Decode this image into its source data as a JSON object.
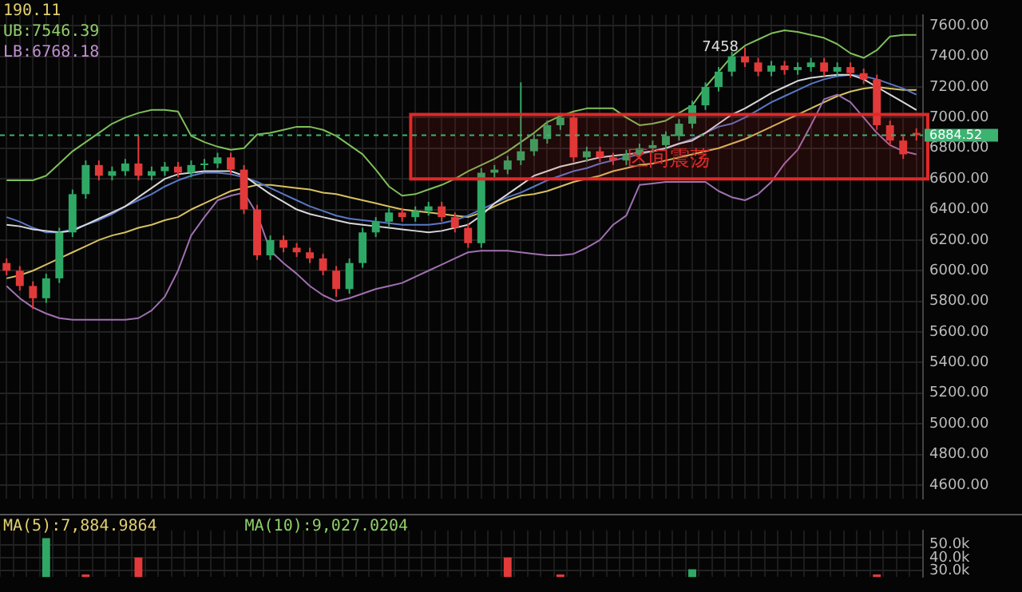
{
  "chart_data": [
    {
      "type": "candlestick",
      "categories": [
        null,
        null,
        null,
        null,
        null,
        null,
        null,
        null,
        null,
        null,
        null,
        null,
        null,
        null,
        null,
        null,
        null,
        null,
        null,
        null,
        null,
        null,
        null,
        null,
        null,
        null,
        null,
        null,
        null,
        null,
        null,
        null,
        null,
        null,
        null,
        null,
        null,
        null,
        null,
        null,
        null,
        null,
        null,
        null,
        null,
        null,
        null,
        null,
        null,
        null,
        null,
        null,
        null,
        null,
        null,
        null,
        null,
        null,
        null,
        null,
        null,
        null,
        null,
        null,
        null,
        null,
        null,
        null,
        null,
        null
      ],
      "ohlc": [
        [
          6050,
          6080,
          5970,
          6000
        ],
        [
          6000,
          6030,
          5870,
          5900
        ],
        [
          5900,
          5930,
          5750,
          5820
        ],
        [
          5820,
          5980,
          5790,
          5950
        ],
        [
          5950,
          6280,
          5920,
          6250
        ],
        [
          6250,
          6530,
          6220,
          6500
        ],
        [
          6500,
          6720,
          6470,
          6690
        ],
        [
          6690,
          6720,
          6590,
          6620
        ],
        [
          6620,
          6680,
          6590,
          6650
        ],
        [
          6650,
          6730,
          6620,
          6700
        ],
        [
          6700,
          6880,
          6590,
          6620
        ],
        [
          6620,
          6680,
          6590,
          6650
        ],
        [
          6650,
          6710,
          6620,
          6680
        ],
        [
          6680,
          6710,
          6610,
          6640
        ],
        [
          6640,
          6720,
          6610,
          6690
        ],
        [
          6690,
          6730,
          6660,
          6700
        ],
        [
          6700,
          6770,
          6670,
          6740
        ],
        [
          6740,
          6770,
          6630,
          6660
        ],
        [
          6660,
          6690,
          6370,
          6400
        ],
        [
          6400,
          6430,
          6070,
          6100
        ],
        [
          6100,
          6230,
          6070,
          6200
        ],
        [
          6200,
          6230,
          6120,
          6150
        ],
        [
          6150,
          6180,
          6090,
          6120
        ],
        [
          6120,
          6150,
          6050,
          6080
        ],
        [
          6080,
          6110,
          5970,
          6000
        ],
        [
          6000,
          6030,
          5830,
          5880
        ],
        [
          5880,
          6080,
          5850,
          6050
        ],
        [
          6050,
          6280,
          6020,
          6250
        ],
        [
          6250,
          6350,
          6220,
          6320
        ],
        [
          6320,
          6410,
          6290,
          6380
        ],
        [
          6380,
          6410,
          6320,
          6350
        ],
        [
          6350,
          6420,
          6320,
          6390
        ],
        [
          6390,
          6450,
          6360,
          6420
        ],
        [
          6420,
          6450,
          6320,
          6350
        ],
        [
          6350,
          6380,
          6250,
          6280
        ],
        [
          6280,
          6310,
          6150,
          6180
        ],
        [
          6180,
          6670,
          6150,
          6640
        ],
        [
          6640,
          6690,
          6610,
          6660
        ],
        [
          6660,
          6750,
          6630,
          6720
        ],
        [
          6720,
          7230,
          6690,
          6780
        ],
        [
          6780,
          6890,
          6750,
          6860
        ],
        [
          6860,
          6980,
          6830,
          6950
        ],
        [
          6950,
          7030,
          6920,
          7000
        ],
        [
          7000,
          7030,
          6710,
          6740
        ],
        [
          6740,
          6810,
          6710,
          6780
        ],
        [
          6780,
          6810,
          6710,
          6740
        ],
        [
          6740,
          6770,
          6690,
          6720
        ],
        [
          6720,
          6790,
          6690,
          6760
        ],
        [
          6760,
          6830,
          6730,
          6800
        ],
        [
          6800,
          6850,
          6770,
          6820
        ],
        [
          6820,
          6910,
          6790,
          6880
        ],
        [
          6880,
          6990,
          6850,
          6960
        ],
        [
          6960,
          7110,
          6930,
          7080
        ],
        [
          7080,
          7230,
          7050,
          7200
        ],
        [
          7200,
          7330,
          7170,
          7300
        ],
        [
          7300,
          7430,
          7270,
          7400
        ],
        [
          7400,
          7458,
          7330,
          7360
        ],
        [
          7360,
          7390,
          7270,
          7300
        ],
        [
          7300,
          7370,
          7270,
          7340
        ],
        [
          7340,
          7370,
          7280,
          7310
        ],
        [
          7310,
          7360,
          7280,
          7330
        ],
        [
          7330,
          7390,
          7300,
          7360
        ],
        [
          7360,
          7390,
          7270,
          7300
        ],
        [
          7300,
          7360,
          7270,
          7330
        ],
        [
          7330,
          7360,
          7260,
          7290
        ],
        [
          7290,
          7320,
          7220,
          7250
        ],
        [
          7250,
          7280,
          6920,
          6950
        ],
        [
          6950,
          6980,
          6820,
          6850
        ],
        [
          6850,
          6880,
          6730,
          6760
        ],
        [
          6900,
          6930,
          6850,
          6884.52
        ]
      ],
      "colors": [
        "#e23a3a",
        "#e23a3a",
        "#e23a3a",
        "#2fa866",
        "#2fa866",
        "#2fa866",
        "#2fa866",
        "#e23a3a",
        "#2fa866",
        "#2fa866",
        "#e23a3a",
        "#2fa866",
        "#2fa866",
        "#e23a3a",
        "#2fa866",
        "#2fa866",
        "#2fa866",
        "#e23a3a",
        "#e23a3a",
        "#e23a3a",
        "#2fa866",
        "#e23a3a",
        "#e23a3a",
        "#e23a3a",
        "#e23a3a",
        "#e23a3a",
        "#2fa866",
        "#2fa866",
        "#2fa866",
        "#2fa866",
        "#e23a3a",
        "#2fa866",
        "#2fa866",
        "#e23a3a",
        "#e23a3a",
        "#e23a3a",
        "#2fa866",
        "#2fa866",
        "#2fa866",
        "#2fa866",
        "#2fa866",
        "#2fa866",
        "#2fa866",
        "#e23a3a",
        "#2fa866",
        "#e23a3a",
        "#e23a3a",
        "#2fa866",
        "#2fa866",
        "#2fa866",
        "#2fa866",
        "#2fa866",
        "#2fa866",
        "#2fa866",
        "#2fa866",
        "#2fa866",
        "#e23a3a",
        "#e23a3a",
        "#2fa866",
        "#e23a3a",
        "#2fa866",
        "#2fa866",
        "#e23a3a",
        "#2fa866",
        "#e23a3a",
        "#e23a3a",
        "#e23a3a",
        "#e23a3a",
        "#e23a3a",
        "#e23a3a"
      ],
      "series": [
        {
          "type": "line",
          "color": "#7fbf5a",
          "values": [
            6590,
            6590,
            6590,
            6620,
            6700,
            6780,
            6840,
            6900,
            6960,
            7000,
            7030,
            7050,
            7050,
            7040,
            6880,
            6840,
            6810,
            6790,
            6800,
            6890,
            6900,
            6920,
            6940,
            6940,
            6920,
            6880,
            6820,
            6760,
            6660,
            6550,
            6490,
            6500,
            6530,
            6560,
            6600,
            6650,
            6690,
            6730,
            6780,
            6840,
            6900,
            6970,
            7010,
            7040,
            7060,
            7060,
            7060,
            7000,
            6950,
            6960,
            6980,
            7030,
            7080,
            7200,
            7300,
            7400,
            7470,
            7510,
            7550,
            7570,
            7560,
            7540,
            7520,
            7480,
            7420,
            7390,
            7440,
            7530,
            7540,
            7540
          ]
        },
        {
          "type": "line",
          "color": "#a070b0",
          "values": [
            5900,
            5820,
            5760,
            5720,
            5690,
            5680,
            5680,
            5680,
            5680,
            5680,
            5690,
            5740,
            5830,
            6000,
            6230,
            6350,
            6460,
            6490,
            6510,
            6370,
            6130,
            6050,
            5980,
            5900,
            5840,
            5800,
            5820,
            5850,
            5880,
            5900,
            5920,
            5960,
            6000,
            6040,
            6080,
            6120,
            6130,
            6130,
            6130,
            6120,
            6110,
            6100,
            6100,
            6110,
            6150,
            6200,
            6300,
            6360,
            6560,
            6570,
            6580,
            6580,
            6580,
            6580,
            6520,
            6480,
            6460,
            6500,
            6580,
            6700,
            6790,
            6950,
            7120,
            7150,
            7100,
            7000,
            6900,
            6820,
            6780,
            6760
          ]
        },
        {
          "type": "line",
          "color": "#d8d8d8",
          "values": [
            6300,
            6290,
            6270,
            6260,
            6250,
            6260,
            6300,
            6340,
            6380,
            6420,
            6480,
            6540,
            6600,
            6630,
            6640,
            6650,
            6650,
            6650,
            6620,
            6560,
            6500,
            6450,
            6400,
            6370,
            6350,
            6330,
            6310,
            6300,
            6290,
            6280,
            6270,
            6260,
            6250,
            6260,
            6280,
            6300,
            6360,
            6440,
            6500,
            6560,
            6620,
            6650,
            6680,
            6700,
            6720,
            6740,
            6750,
            6760,
            6770,
            6780,
            6800,
            6830,
            6850,
            6900,
            6960,
            7020,
            7060,
            7110,
            7160,
            7200,
            7240,
            7260,
            7270,
            7280,
            7280,
            7250,
            7200,
            7150,
            7100,
            7050
          ]
        },
        {
          "type": "line",
          "color": "#5a78c8",
          "values": [
            6350,
            6320,
            6280,
            6250,
            6250,
            6270,
            6300,
            6330,
            6370,
            6420,
            6460,
            6500,
            6550,
            6590,
            6620,
            6640,
            6640,
            6630,
            6610,
            6580,
            6540,
            6500,
            6460,
            6420,
            6390,
            6360,
            6340,
            6330,
            6320,
            6310,
            6300,
            6300,
            6300,
            6310,
            6330,
            6360,
            6400,
            6440,
            6480,
            6510,
            6550,
            6590,
            6620,
            6650,
            6670,
            6700,
            6720,
            6740,
            6760,
            6780,
            6800,
            6830,
            6860,
            6900,
            6940,
            6960,
            7000,
            7050,
            7100,
            7140,
            7180,
            7220,
            7250,
            7270,
            7280,
            7270,
            7250,
            7220,
            7190,
            7150
          ]
        },
        {
          "type": "line",
          "color": "#d8c060",
          "values": [
            5950,
            5970,
            6000,
            6040,
            6080,
            6120,
            6160,
            6200,
            6230,
            6250,
            6280,
            6300,
            6330,
            6350,
            6400,
            6440,
            6480,
            6520,
            6540,
            6560,
            6560,
            6550,
            6540,
            6530,
            6510,
            6500,
            6480,
            6460,
            6440,
            6420,
            6400,
            6390,
            6380,
            6370,
            6360,
            6350,
            6380,
            6420,
            6460,
            6490,
            6500,
            6520,
            6550,
            6580,
            6600,
            6620,
            6650,
            6670,
            6690,
            6700,
            6720,
            6740,
            6760,
            6780,
            6800,
            6830,
            6860,
            6900,
            6940,
            6980,
            7020,
            7060,
            7100,
            7140,
            7170,
            7190,
            7200,
            7190,
            7180,
            7180
          ]
        }
      ],
      "ylim": [
        4510,
        7670
      ],
      "yticks": [
        {
          "value": 4600,
          "label": "4600.00"
        },
        {
          "value": 4800,
          "label": "4800.00"
        },
        {
          "value": 5000,
          "label": "5000.00"
        },
        {
          "value": 5200,
          "label": "5200.00"
        },
        {
          "value": 5400,
          "label": "5400.00"
        },
        {
          "value": 5600,
          "label": "5600.00"
        },
        {
          "value": 5800,
          "label": "5800.00"
        },
        {
          "value": 6000,
          "label": "6000.00"
        },
        {
          "value": 6200,
          "label": "6200.00"
        },
        {
          "value": 6400,
          "label": "6400.00"
        },
        {
          "value": 6600,
          "label": "6600.00"
        },
        {
          "value": 6800,
          "label": "6800.00"
        },
        {
          "value": 7000,
          "label": "7000.00"
        },
        {
          "value": 7200,
          "label": "7200.00"
        },
        {
          "value": 7400,
          "label": "7400.00"
        },
        {
          "value": 7600,
          "label": "7600.00"
        }
      ],
      "grid": true,
      "legend": false,
      "tick_labels": "y",
      "marker": "none",
      "line_style": "solid",
      "ref_lines": [
        {
          "axis": "y",
          "value": 6884.52,
          "label": "6884.52",
          "color": "#3cb371",
          "line_style": "dashed"
        }
      ],
      "bands": [
        {
          "axis": "y",
          "from": 6600,
          "to": 7020,
          "label": "区间震荡",
          "color": "#e02828"
        }
      ],
      "annotations": [
        "190.11",
        "UB:7546.39",
        "LB:6768.18",
        "7458"
      ]
    },
    {
      "type": "bar",
      "categories": [
        null,
        null,
        null,
        null,
        null,
        null,
        null,
        null,
        null,
        null,
        null,
        null,
        null,
        null,
        null,
        null,
        null,
        null,
        null,
        null,
        null,
        null,
        null,
        null,
        null,
        null,
        null,
        null,
        null,
        null,
        null,
        null,
        null,
        null,
        null,
        null,
        null,
        null,
        null,
        null,
        null,
        null,
        null,
        null,
        null,
        null,
        null,
        null,
        null,
        null,
        null,
        null,
        null,
        null,
        null,
        null,
        null,
        null,
        null,
        null,
        null,
        null,
        null,
        null,
        null,
        null,
        null,
        null,
        null,
        null
      ],
      "values": [
        null,
        null,
        null,
        55000,
        null,
        null,
        27000,
        null,
        null,
        null,
        40000,
        null,
        null,
        null,
        null,
        null,
        null,
        null,
        null,
        null,
        null,
        null,
        null,
        null,
        null,
        null,
        null,
        null,
        null,
        null,
        null,
        null,
        null,
        null,
        null,
        null,
        null,
        null,
        40000,
        null,
        null,
        null,
        27000,
        null,
        null,
        null,
        null,
        null,
        null,
        null,
        null,
        null,
        31000,
        null,
        null,
        null,
        null,
        null,
        null,
        null,
        null,
        null,
        null,
        null,
        null,
        null,
        27000,
        null,
        null,
        null
      ],
      "colors": [
        "#e23a3a",
        "#e23a3a",
        "#e23a3a",
        "#2fa866",
        "#2fa866",
        "#2fa866",
        "#e23a3a",
        "#e23a3a",
        "#2fa866",
        "#2fa866",
        "#e23a3a",
        "#2fa866",
        "#2fa866",
        "#e23a3a",
        "#2fa866",
        "#2fa866",
        "#2fa866",
        "#e23a3a",
        "#e23a3a",
        "#e23a3a",
        "#2fa866",
        "#e23a3a",
        "#e23a3a",
        "#e23a3a",
        "#e23a3a",
        "#e23a3a",
        "#2fa866",
        "#2fa866",
        "#2fa866",
        "#2fa866",
        "#e23a3a",
        "#2fa866",
        "#2fa866",
        "#e23a3a",
        "#e23a3a",
        "#e23a3a",
        "#2fa866",
        "#2fa866",
        "#e23a3a",
        "#2fa866",
        "#2fa866",
        "#2fa866",
        "#e23a3a",
        "#e23a3a",
        "#2fa866",
        "#e23a3a",
        "#e23a3a",
        "#2fa866",
        "#2fa866",
        "#2fa866",
        "#2fa866",
        "#2fa866",
        "#2fa866",
        "#2fa866",
        "#2fa866",
        "#2fa866",
        "#e23a3a",
        "#e23a3a",
        "#2fa866",
        "#e23a3a",
        "#2fa866",
        "#2fa866",
        "#e23a3a",
        "#2fa866",
        "#e23a3a",
        "#e23a3a",
        "#e23a3a",
        "#e23a3a",
        "#e23a3a",
        "#e23a3a"
      ],
      "ylim": [
        25000,
        61000
      ],
      "yticks": [
        {
          "value": 30000,
          "label": "30.0k"
        },
        {
          "value": 40000,
          "label": "40.0k"
        },
        {
          "value": 50000,
          "label": "50.0k"
        }
      ],
      "grid": true,
      "legend": false,
      "tick_labels": "y",
      "annotations": [
        "MA(5):7,884.9864",
        "MA(10):9,027.0204"
      ]
    }
  ]
}
